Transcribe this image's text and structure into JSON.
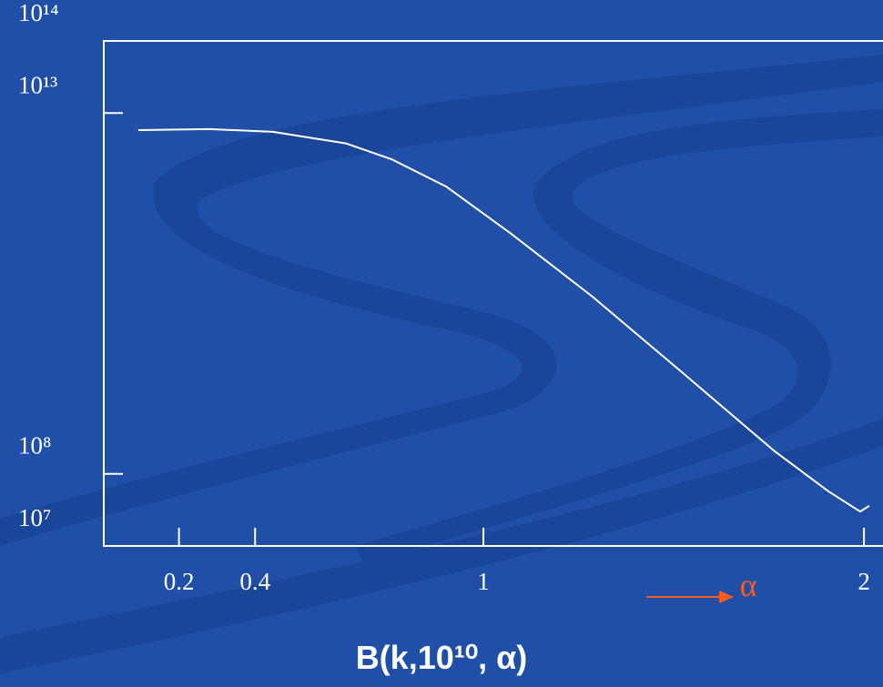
{
  "chart_data": {
    "type": "line",
    "xlabel": "B(k,10¹⁰, α)",
    "annotation": "α",
    "x": [
      0.093,
      0.28,
      0.447,
      0.639,
      0.758,
      0.902,
      1.069,
      1.285,
      1.524,
      1.763,
      1.907,
      1.99,
      2.014
    ],
    "series": [
      {
        "color": "#ffffff",
        "values": [
          5800000000000.0,
          6000000000000.0,
          5500000000000.0,
          3800000000000.0,
          2300000000000.0,
          960000000000.0,
          220000000000.0,
          29000000000.0,
          2500000000.0,
          210000000.0,
          57000000.0,
          30000000.0,
          36000000.0
        ]
      }
    ],
    "xlim": [
      0,
      2.05
    ],
    "xticks": [
      0.2,
      0.4,
      1,
      2
    ],
    "ylim": [
      10000000.0,
      100000000000000.0
    ],
    "log_y": true,
    "yticks": [
      {
        "value": 100000000000000.0,
        "label": "10¹⁴"
      },
      {
        "value": 10000000000000.0,
        "label": "10¹³"
      },
      {
        "value": 100000000.0,
        "label": "10⁸"
      },
      {
        "value": 10000000.0,
        "label": "10⁷"
      }
    ],
    "annotation_color": "#ff5a1f"
  }
}
